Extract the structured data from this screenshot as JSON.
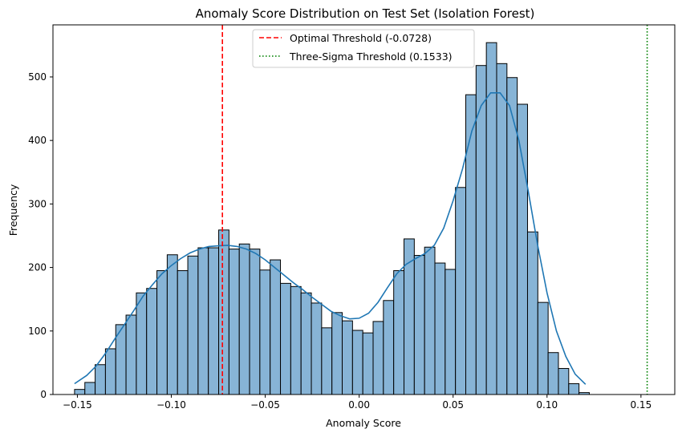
{
  "chart_data": {
    "type": "bar",
    "title": "Anomaly Score Distribution on Test Set (Isolation Forest)",
    "xlabel": "Anomaly Score",
    "ylabel": "Frequency",
    "xlim": [
      -0.163,
      0.168
    ],
    "ylim": [
      0,
      582
    ],
    "x_ticks": [
      -0.15,
      -0.1,
      -0.05,
      0.0,
      0.05,
      0.1,
      0.15
    ],
    "x_tick_labels": [
      "−0.15",
      "−0.10",
      "−0.05",
      "0.00",
      "0.05",
      "0.10",
      "0.15"
    ],
    "y_ticks": [
      0,
      100,
      200,
      300,
      400,
      500
    ],
    "y_tick_labels": [
      "0",
      "100",
      "200",
      "300",
      "400",
      "500"
    ],
    "bin_start": -0.1515,
    "bin_width": 0.00548,
    "counts": [
      8,
      19,
      47,
      72,
      110,
      125,
      160,
      167,
      195,
      220,
      195,
      218,
      231,
      231,
      259,
      229,
      237,
      229,
      196,
      212,
      175,
      170,
      160,
      144,
      105,
      129,
      116,
      101,
      97,
      115,
      148,
      195,
      245,
      219,
      232,
      207,
      197,
      326,
      472,
      518,
      554,
      521,
      499,
      457,
      256,
      145,
      66,
      41,
      17,
      3
    ],
    "hist_color": "#87b4d6",
    "kde": {
      "color": "#1f77b4",
      "x": [
        -0.1515,
        -0.145,
        -0.14,
        -0.135,
        -0.13,
        -0.125,
        -0.12,
        -0.115,
        -0.11,
        -0.105,
        -0.1,
        -0.095,
        -0.09,
        -0.085,
        -0.08,
        -0.075,
        -0.07,
        -0.065,
        -0.06,
        -0.055,
        -0.05,
        -0.045,
        -0.04,
        -0.035,
        -0.03,
        -0.025,
        -0.02,
        -0.015,
        -0.01,
        -0.005,
        0.0,
        0.005,
        0.01,
        0.015,
        0.02,
        0.025,
        0.03,
        0.035,
        0.04,
        0.045,
        0.05,
        0.055,
        0.06,
        0.065,
        0.07,
        0.075,
        0.08,
        0.085,
        0.09,
        0.095,
        0.1,
        0.105,
        0.11,
        0.115,
        0.1205
      ],
      "y": [
        17,
        30,
        45,
        65,
        88,
        110,
        132,
        155,
        173,
        190,
        203,
        214,
        223,
        229,
        233,
        234,
        235,
        233,
        229,
        222,
        212,
        200,
        188,
        176,
        165,
        153,
        142,
        131,
        124,
        119,
        120,
        128,
        145,
        168,
        190,
        205,
        214,
        222,
        235,
        262,
        305,
        355,
        415,
        455,
        475,
        475,
        455,
        400,
        320,
        235,
        160,
        100,
        60,
        32,
        16
      ]
    },
    "thresholds": [
      {
        "name": "Optimal Threshold (-0.0728)",
        "value": -0.0728,
        "color": "#ff0000",
        "style": "dashed"
      },
      {
        "name": "Three-Sigma Threshold (0.1533)",
        "value": 0.1533,
        "color": "#008000",
        "style": "dotted"
      }
    ],
    "legend_position": "top-center",
    "grid": false
  }
}
